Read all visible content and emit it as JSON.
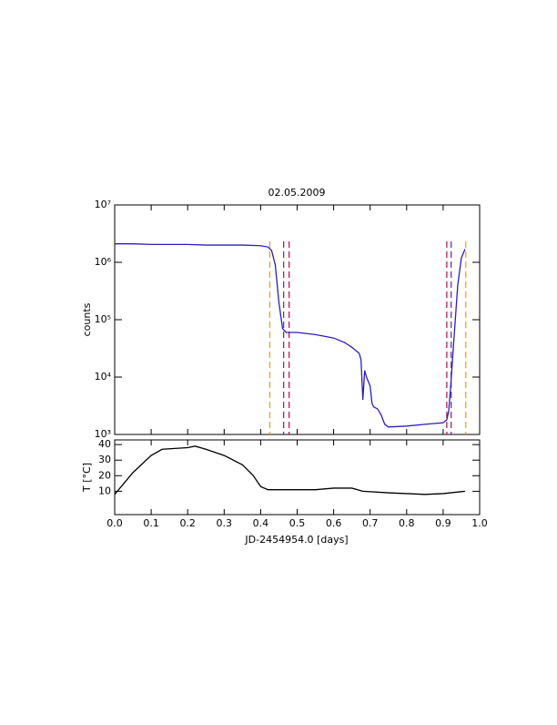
{
  "chart_data": [
    {
      "type": "line",
      "title": "02.05.2009",
      "ylabel": "counts",
      "log_y": true,
      "color": "#2a20b8",
      "xlim": [
        0,
        1
      ],
      "ylim": [
        1000,
        10000000
      ],
      "yticks": [
        {
          "value": 1000,
          "label": "10³"
        },
        {
          "value": 10000,
          "label": "10⁴"
        },
        {
          "value": 100000,
          "label": "10⁵"
        },
        {
          "value": 1000000,
          "label": "10⁶"
        },
        {
          "value": 10000000,
          "label": "10⁷"
        }
      ],
      "x": [
        0,
        0.05,
        0.1,
        0.15,
        0.2,
        0.25,
        0.3,
        0.35,
        0.4,
        0.42,
        0.43,
        0.44,
        0.45,
        0.46,
        0.47,
        0.5,
        0.55,
        0.6,
        0.63,
        0.65,
        0.67,
        0.675,
        0.68,
        0.685,
        0.69,
        0.7,
        0.705,
        0.71,
        0.72,
        0.73,
        0.74,
        0.75,
        0.8,
        0.85,
        0.9,
        0.91,
        0.915,
        0.92,
        0.93,
        0.94,
        0.95,
        0.96
      ],
      "values": [
        2100000,
        2100000,
        2050000,
        2050000,
        2050000,
        2000000,
        2000000,
        2000000,
        1950000,
        1850000,
        1600000,
        900000,
        200000,
        70000,
        60000,
        60000,
        55000,
        48000,
        40000,
        33000,
        26000,
        20000,
        4000,
        13000,
        10000,
        7000,
        3500,
        3000,
        2800,
        2200,
        1500,
        1350,
        1400,
        1500,
        1600,
        1800,
        2500,
        6000,
        50000,
        400000,
        1200000,
        1700000
      ],
      "vlines": [
        {
          "x": 0.425,
          "color": "#ff9900"
        },
        {
          "x": 0.463,
          "color": "#7a1a9a"
        },
        {
          "x": 0.478,
          "color": "#b0103a"
        },
        {
          "x": 0.91,
          "color": "#b0103a"
        },
        {
          "x": 0.922,
          "color": "#7a1a9a"
        },
        {
          "x": 0.962,
          "color": "#ff9900"
        }
      ]
    },
    {
      "type": "line",
      "xlabel": "JD-2454954.0 [days]",
      "ylabel": "T [°C]",
      "color": "#000000",
      "xlim": [
        0,
        1
      ],
      "ylim": [
        -5,
        43
      ],
      "xticks": [
        {
          "value": 0,
          "label": "0.0"
        },
        0.1,
        0.2,
        0.3,
        0.4,
        0.5,
        0.6,
        0.7,
        0.8,
        0.9,
        {
          "value": 1,
          "label": "1.0"
        }
      ],
      "yticks": [
        10,
        20,
        30,
        40
      ],
      "x": [
        0,
        0.05,
        0.1,
        0.13,
        0.2,
        0.22,
        0.25,
        0.3,
        0.35,
        0.38,
        0.4,
        0.42,
        0.5,
        0.55,
        0.6,
        0.65,
        0.68,
        0.75,
        0.8,
        0.85,
        0.9,
        0.96
      ],
      "values": [
        8,
        22,
        33,
        37,
        38,
        39,
        37,
        33,
        27,
        20,
        13,
        11,
        11,
        11,
        12,
        12,
        10,
        9,
        8.5,
        8,
        8.5,
        10
      ]
    }
  ]
}
